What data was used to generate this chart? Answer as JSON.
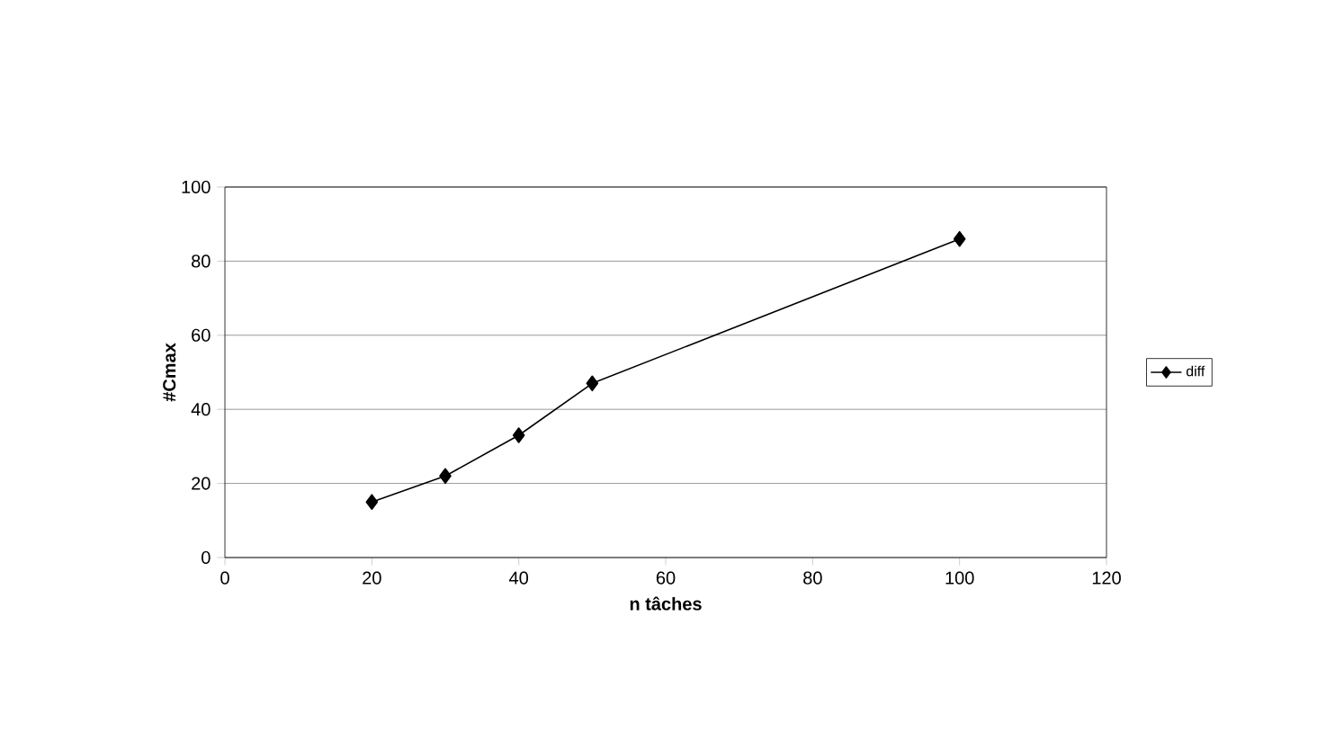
{
  "chart_data": {
    "type": "line",
    "xlabel": "n tâches",
    "ylabel": "#Cmax",
    "x": [
      20,
      30,
      40,
      50,
      100
    ],
    "series": [
      {
        "name": "diff",
        "color": "#000000",
        "values": [
          15,
          22,
          33,
          47,
          86
        ]
      }
    ],
    "xlim": [
      0,
      120
    ],
    "xticks": [
      0,
      20,
      40,
      60,
      80,
      100,
      120
    ],
    "ylim": [
      0,
      100
    ],
    "yticks": [
      0,
      20,
      40,
      60,
      80,
      100
    ],
    "grid": "y",
    "legend": "right",
    "marker": "diamond",
    "line_style": "solid"
  }
}
